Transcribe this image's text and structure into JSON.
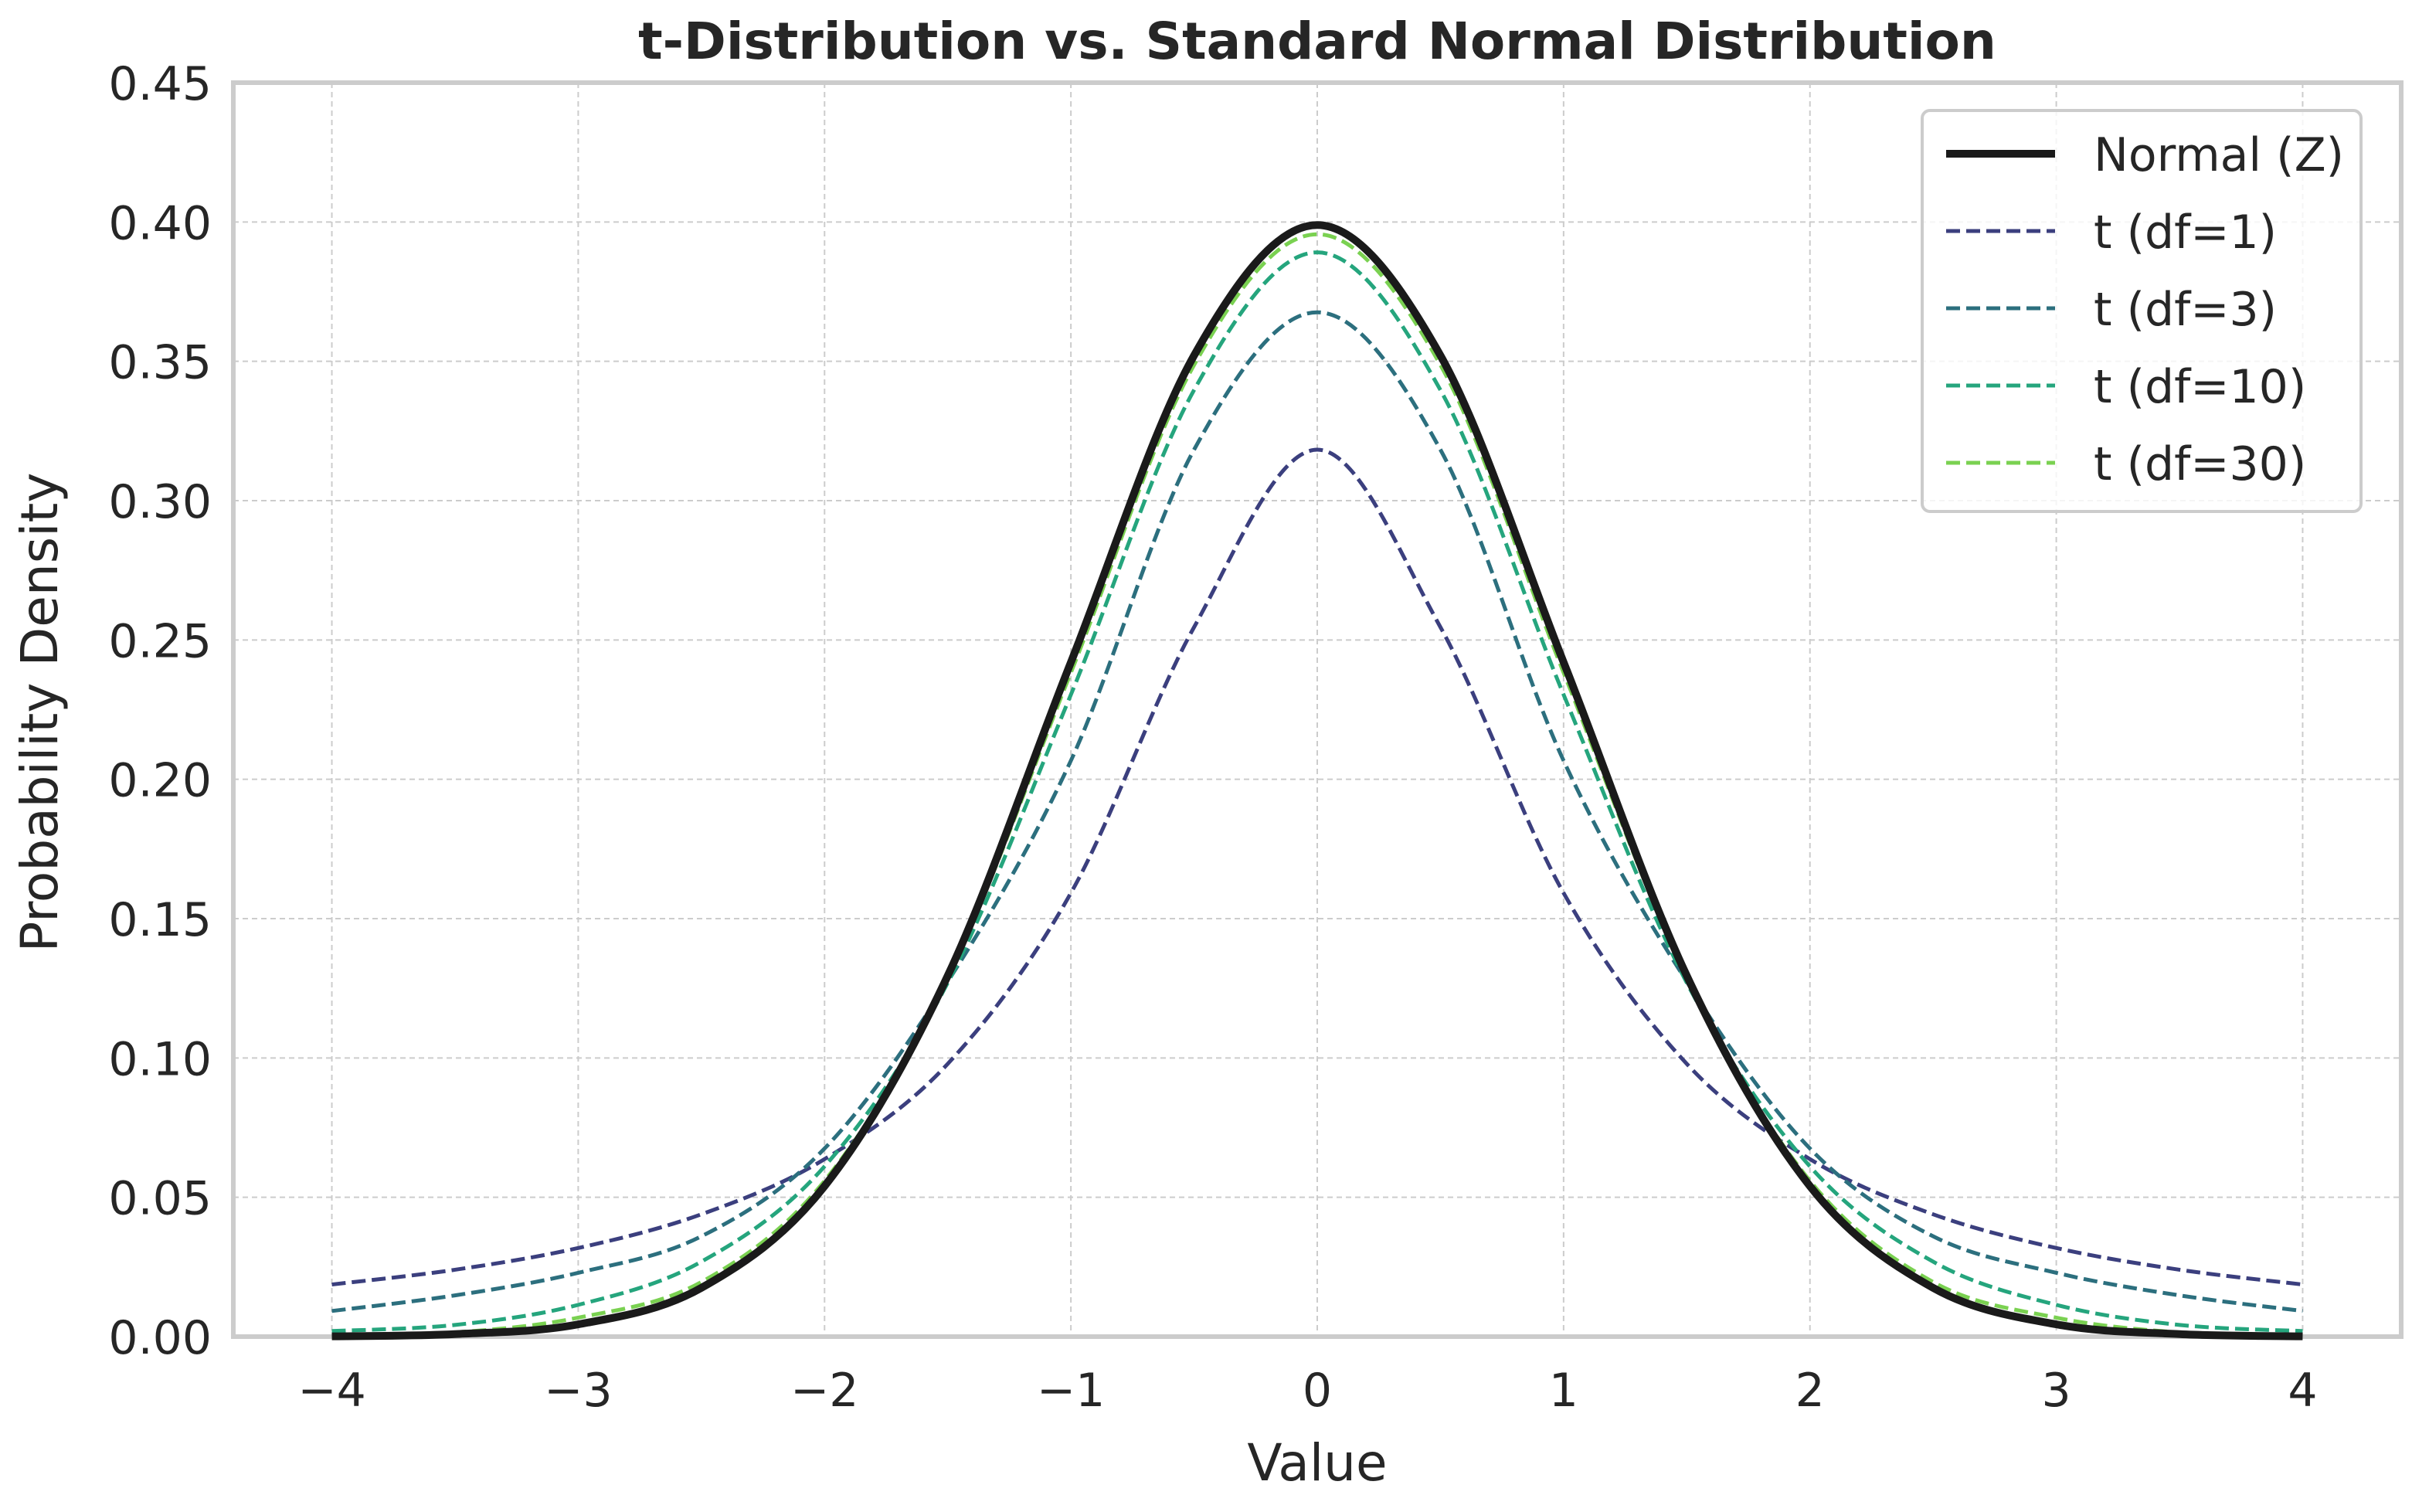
{
  "chart_data": {
    "type": "line",
    "title": "t-Distribution vs. Standard Normal Distribution",
    "xlabel": "Value",
    "ylabel": "Probability Density",
    "xlim": [
      -4.4,
      4.4
    ],
    "ylim": [
      0,
      0.45
    ],
    "x_ticks": [
      -4,
      -3,
      -2,
      -1,
      0,
      1,
      2,
      3,
      4
    ],
    "x_tick_labels": [
      "−4",
      "−3",
      "−2",
      "−1",
      "0",
      "1",
      "2",
      "3",
      "4"
    ],
    "y_ticks": [
      0,
      0.05,
      0.1,
      0.15,
      0.2,
      0.25,
      0.3,
      0.35,
      0.4,
      0.45
    ],
    "y_tick_labels": [
      "0.00",
      "0.05",
      "0.10",
      "0.15",
      "0.20",
      "0.25",
      "0.30",
      "0.35",
      "0.40",
      "0.45"
    ],
    "grid": true,
    "legend_position": "top-right",
    "x": [
      -4,
      -3.5,
      -3,
      -2.5,
      -2,
      -1.5,
      -1,
      -0.5,
      0,
      0.5,
      1,
      1.5,
      2,
      2.5,
      3,
      3.5,
      4
    ],
    "series": [
      {
        "name": "Normal (Z)",
        "color": "#1a1a1a",
        "style": "solid",
        "values": [
          0.0001,
          0.0009,
          0.0044,
          0.0175,
          0.054,
          0.1295,
          0.242,
          0.3521,
          0.3989,
          0.3521,
          0.242,
          0.1295,
          0.054,
          0.0175,
          0.0044,
          0.0009,
          0.0001
        ]
      },
      {
        "name": "t (df=1)",
        "color": "#3b3f7e",
        "style": "dashed",
        "values": [
          0.0187,
          0.024,
          0.0318,
          0.0439,
          0.0637,
          0.0979,
          0.1592,
          0.2546,
          0.3183,
          0.2546,
          0.1592,
          0.0979,
          0.0637,
          0.0439,
          0.0318,
          0.024,
          0.0187
        ]
      },
      {
        "name": "t (df=3)",
        "color": "#2c6f7e",
        "style": "dashed",
        "values": [
          0.0092,
          0.0148,
          0.0229,
          0.036,
          0.0675,
          0.1274,
          0.2067,
          0.3183,
          0.3676,
          0.3183,
          0.2067,
          0.1274,
          0.0675,
          0.036,
          0.0229,
          0.0148,
          0.0092
        ]
      },
      {
        "name": "t (df=10)",
        "color": "#25a57d",
        "style": "dashed",
        "values": [
          0.002,
          0.0042,
          0.0114,
          0.0269,
          0.0611,
          0.127,
          0.2304,
          0.3397,
          0.3891,
          0.3397,
          0.2304,
          0.127,
          0.0611,
          0.0269,
          0.0114,
          0.0042,
          0.002
        ]
      },
      {
        "name": "t (df=30)",
        "color": "#7ad151",
        "style": "dashed",
        "values": [
          0.0004,
          0.0015,
          0.0068,
          0.0196,
          0.0559,
          0.1287,
          0.2383,
          0.3487,
          0.3956,
          0.3487,
          0.2383,
          0.1287,
          0.0559,
          0.0196,
          0.0068,
          0.0015,
          0.0004
        ]
      }
    ]
  }
}
